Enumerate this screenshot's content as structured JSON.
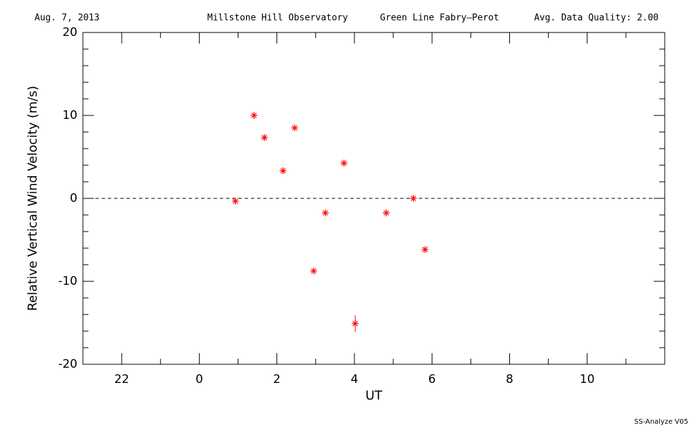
{
  "chart_data": {
    "type": "scatter",
    "header": [
      "Aug. 7, 2013",
      "Millstone Hill Observatory",
      "Green Line Fabry—Perot",
      "Avg. Data Quality: 2.00"
    ],
    "footer": "SS-Analyze V05",
    "x_label": "UT",
    "y_label": "Relative Vertical Wind Velocity (m/s)",
    "color": "#ff0000",
    "reference_line": 0,
    "x": [
      0.93,
      1.41,
      1.68,
      2.16,
      2.46,
      2.95,
      3.25,
      3.73,
      4.02,
      4.82,
      5.52,
      5.82
    ],
    "values": [
      -0.33,
      10.0,
      7.33,
      3.33,
      8.5,
      -8.75,
      -1.75,
      4.25,
      -15.1,
      -1.75,
      0.0,
      -6.17
    ],
    "errors": [
      0.2,
      0.2,
      0.2,
      0.2,
      0.2,
      0.2,
      0.2,
      0.2,
      1.0,
      0.2,
      0.2,
      0.2
    ],
    "xlim": [
      -3,
      12
    ],
    "xticks": [
      {
        "value": -2,
        "label": "22"
      },
      0,
      2,
      4,
      6,
      8,
      10
    ],
    "x_minor_ticks": [
      -3,
      -1,
      1,
      3,
      5,
      7,
      9,
      11,
      12
    ],
    "ylim": [
      -20,
      20
    ],
    "yticks": [
      -20,
      -10,
      0,
      10,
      20
    ],
    "y_minor_ticks": [
      -18,
      -16,
      -14,
      -12,
      -8,
      -6,
      -4,
      -2,
      2,
      4,
      6,
      8,
      12,
      14,
      16,
      18
    ]
  }
}
